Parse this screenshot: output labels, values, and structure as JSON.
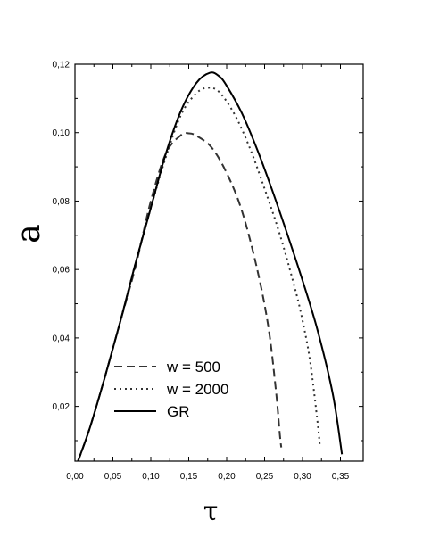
{
  "chart_data": {
    "type": "line",
    "xlabel": "τ",
    "ylabel": "a",
    "xlim": [
      0.0,
      0.38
    ],
    "ylim": [
      0.004,
      0.12
    ],
    "x_ticks": [
      0.0,
      0.05,
      0.1,
      0.15,
      0.2,
      0.25,
      0.3,
      0.35
    ],
    "x_tick_labels": [
      "0,00",
      "0,05",
      "0,10",
      "0,15",
      "0,20",
      "0,25",
      "0,30",
      "0,35"
    ],
    "y_ticks": [
      0.02,
      0.04,
      0.06,
      0.08,
      0.1,
      0.12
    ],
    "y_tick_labels": [
      "0,02",
      "0,04",
      "0,06",
      "0,08",
      "0,10",
      "0,12"
    ],
    "grid": false,
    "legend_position": "bottom-left",
    "series": [
      {
        "name": "w = 500",
        "style": "dashed",
        "color": "#333333",
        "x": [
          0.004,
          0.02,
          0.04,
          0.06,
          0.08,
          0.1,
          0.12,
          0.14,
          0.15,
          0.16,
          0.18,
          0.2,
          0.22,
          0.24,
          0.255,
          0.265,
          0.27,
          0.272
        ],
        "y": [
          0.004,
          0.014,
          0.029,
          0.045,
          0.061,
          0.08,
          0.094,
          0.0993,
          0.0998,
          0.0991,
          0.0957,
          0.0882,
          0.0772,
          0.0603,
          0.0432,
          0.0245,
          0.012,
          0.008
        ]
      },
      {
        "name": "w = 2000",
        "style": "dotted",
        "color": "#333333",
        "x": [
          0.004,
          0.02,
          0.04,
          0.06,
          0.08,
          0.1,
          0.12,
          0.14,
          0.16,
          0.175,
          0.19,
          0.21,
          0.23,
          0.25,
          0.27,
          0.29,
          0.3,
          0.31,
          0.32,
          0.323
        ],
        "y": [
          0.004,
          0.014,
          0.029,
          0.045,
          0.062,
          0.078,
          0.093,
          0.1053,
          0.1115,
          0.1131,
          0.1119,
          0.1055,
          0.0958,
          0.0836,
          0.0703,
          0.0545,
          0.0451,
          0.0332,
          0.015,
          0.008
        ]
      },
      {
        "name": "GR",
        "style": "solid",
        "color": "#000000",
        "x": [
          0.004,
          0.02,
          0.04,
          0.06,
          0.08,
          0.1,
          0.12,
          0.14,
          0.16,
          0.178,
          0.19,
          0.2,
          0.22,
          0.24,
          0.26,
          0.28,
          0.3,
          0.32,
          0.34,
          0.352
        ],
        "y": [
          0.004,
          0.014,
          0.029,
          0.045,
          0.062,
          0.078,
          0.094,
          0.1065,
          0.1145,
          0.1175,
          0.1165,
          0.1137,
          0.1057,
          0.0952,
          0.0832,
          0.0703,
          0.0568,
          0.0421,
          0.0235,
          0.006
        ]
      }
    ]
  }
}
